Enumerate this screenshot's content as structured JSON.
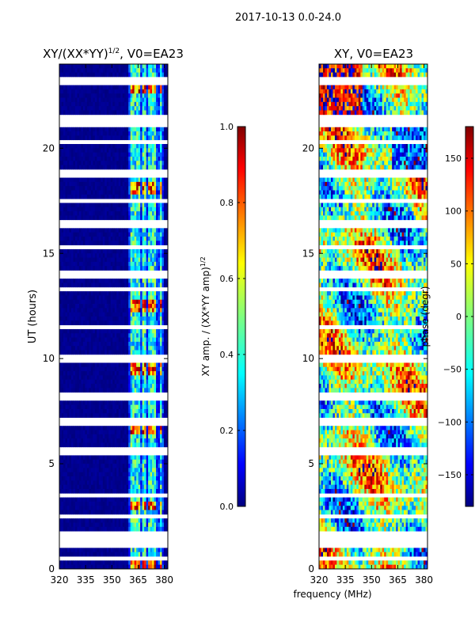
{
  "figure_title": "2017-10-13 0.0-24.0",
  "colors": {
    "dark_blue": "#00007f",
    "blue": "#0000ff",
    "cyan": "#00ffff",
    "yellow": "#ffff00",
    "red": "#ff0000",
    "dark_red": "#7f0000"
  },
  "chart_data": [
    {
      "type": "heatmap",
      "panel": "amplitude",
      "title": "XY/(XX*YY)",
      "title_exponent": "1/2",
      "title_suffix": ", V0=EA23",
      "xlabel": "",
      "ylabel": "UT (hours)",
      "xlim": [
        320,
        382
      ],
      "ylim": [
        0,
        24
      ],
      "xticks": [
        320,
        335,
        350,
        365,
        380
      ],
      "xtick_labels": [
        "320",
        "335",
        "350",
        "365",
        "380"
      ],
      "yticks": [
        0,
        5,
        10,
        15,
        20
      ],
      "ytick_labels": [
        "0",
        "5",
        "10",
        "15",
        "20"
      ],
      "colorbar": {
        "label": "XY amp. / (XX*YY amp)",
        "label_exponent": "1/2",
        "range": [
          0.0,
          1.0
        ],
        "ticks": [
          0.0,
          0.2,
          0.4,
          0.6,
          0.8,
          1.0
        ],
        "tick_labels": [
          "0.0",
          "0.2",
          "0.4",
          "0.6",
          "0.8",
          "1.0"
        ],
        "colormap": "jet"
      },
      "signal_bands_mhz": [
        [
          361,
          363.5
        ],
        [
          364,
          366.5
        ],
        [
          367,
          369.5
        ],
        [
          370.5,
          372.5
        ],
        [
          373,
          375.5
        ],
        [
          377,
          379
        ]
      ],
      "strong_signal_hours": [
        0.3,
        3.0,
        6.6,
        9.5,
        12.5,
        18.1,
        22.8
      ],
      "flagged_gaps_hours": [
        0.5,
        1.2,
        1.6,
        2.5,
        3.5,
        5.6,
        7.0,
        8.2,
        10.0,
        11.5,
        13.3,
        14.0,
        15.3,
        16.4,
        17.5,
        18.8,
        20.3,
        21.2,
        21.5,
        23.2
      ]
    },
    {
      "type": "heatmap",
      "panel": "phase",
      "title": "XY, V0=EA23",
      "xlabel": "frequency (MHz)",
      "ylabel": "",
      "xlim": [
        320,
        382
      ],
      "ylim": [
        0,
        24
      ],
      "xticks": [
        320,
        335,
        350,
        365,
        380
      ],
      "xtick_labels": [
        "320",
        "335",
        "350",
        "365",
        "380"
      ],
      "yticks": [
        0,
        5,
        10,
        15,
        20
      ],
      "ytick_labels": [
        "0",
        "5",
        "10",
        "15",
        "20"
      ],
      "colorbar": {
        "label": "phase (degr)",
        "range": [
          -180,
          180
        ],
        "ticks": [
          150,
          100,
          50,
          0,
          -50,
          -100,
          -150
        ],
        "tick_labels": [
          "150",
          "100",
          "50",
          "0",
          "−50",
          "−100",
          "−150"
        ],
        "colormap": "jet"
      },
      "flagged_gaps_hours": [
        0.5,
        1.2,
        1.6,
        2.5,
        3.5,
        5.6,
        7.0,
        8.2,
        10.0,
        11.5,
        13.3,
        14.0,
        15.3,
        16.4,
        17.5,
        18.8,
        20.3,
        21.2,
        21.5,
        23.2
      ]
    }
  ]
}
